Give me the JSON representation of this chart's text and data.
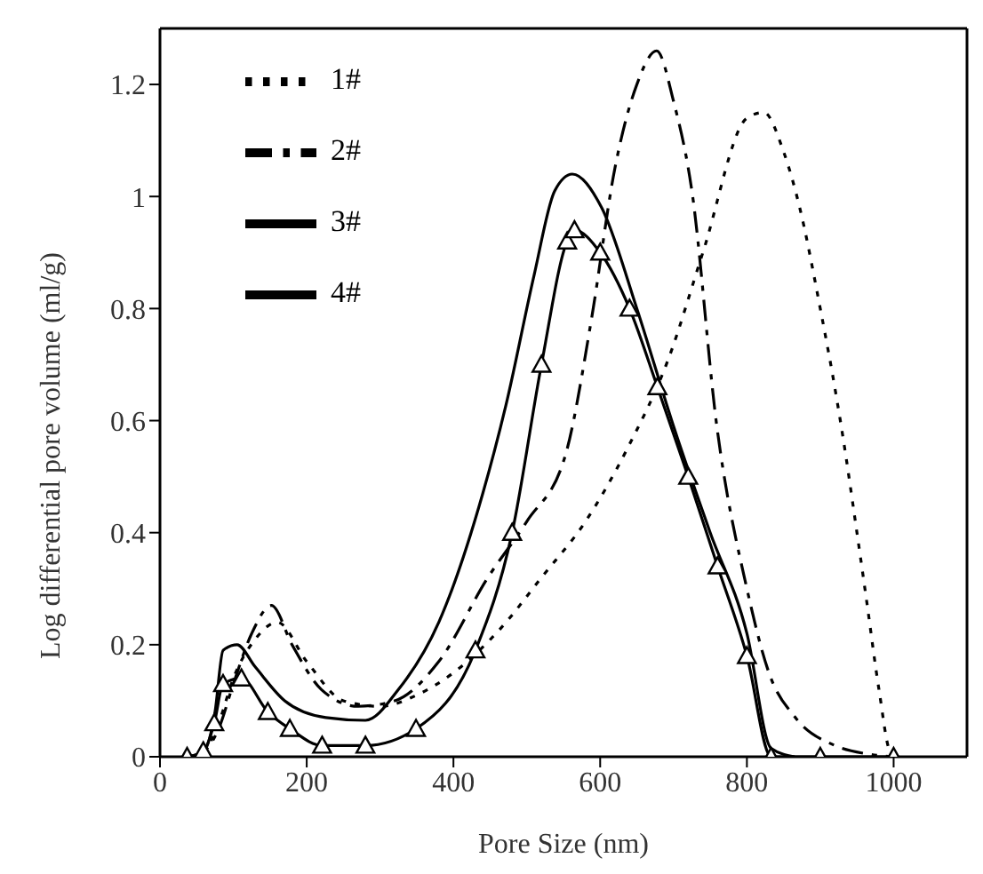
{
  "chart_data": {
    "type": "line",
    "xlabel": "Pore Size (nm)",
    "ylabel": "Log differential pore volume (ml/g)",
    "xlim": [
      0,
      1100
    ],
    "xticks": [
      0,
      200,
      400,
      600,
      800,
      1000
    ],
    "ylim": [
      0,
      1.3
    ],
    "yticks": [
      0,
      0.2,
      0.4,
      0.6,
      0.8,
      1,
      1.2
    ],
    "grid": false,
    "legend": "top left",
    "marker": "none",
    "series": [
      {
        "name": "1#",
        "color": "#000000",
        "line_style": "dotted",
        "x": [
          40,
          60,
          80,
          100,
          130,
          160,
          200,
          250,
          300,
          350,
          400,
          465,
          520,
          580,
          637,
          693,
          740,
          800,
          823,
          850,
          872,
          900,
          921,
          931,
          950,
          963,
          980,
          995,
          1005
        ],
        "values": [
          0,
          0.01,
          0.06,
          0.14,
          0.21,
          0.24,
          0.17,
          0.1,
          0.09,
          0.11,
          0.15,
          0.23,
          0.32,
          0.42,
          0.55,
          0.71,
          0.9,
          1.14,
          1.15,
          1.08,
          0.98,
          0.8,
          0.65,
          0.57,
          0.4,
          0.28,
          0.12,
          0.01,
          0
        ]
      },
      {
        "name": "2#",
        "color": "#000000",
        "line_style": "dashed",
        "x": [
          40,
          60,
          80,
          100,
          125,
          152,
          180,
          220,
          270,
          320,
          380,
          447,
          500,
          553,
          588,
          620,
          650,
          677,
          700,
          725,
          759,
          800,
          830,
          866,
          920,
          964,
          1000
        ],
        "values": [
          0,
          0.01,
          0.05,
          0.13,
          0.22,
          0.27,
          0.2,
          0.12,
          0.09,
          0.1,
          0.17,
          0.32,
          0.42,
          0.54,
          0.78,
          1.05,
          1.2,
          1.26,
          1.17,
          1.01,
          0.59,
          0.3,
          0.15,
          0.07,
          0.02,
          0.005,
          0
        ]
      },
      {
        "name": "3#",
        "color": "#000000",
        "line_style": "solid",
        "x": [
          40,
          60,
          75,
          86,
          105,
          130,
          170,
          226,
          280,
          325,
          380,
          440,
          472,
          510,
          538,
          562,
          602,
          650,
          700,
          750,
          800,
          833,
          865
        ],
        "values": [
          0,
          0.01,
          0.08,
          0.19,
          0.2,
          0.16,
          0.1,
          0.07,
          0.065,
          0.12,
          0.24,
          0.47,
          0.63,
          0.86,
          1.01,
          1.04,
          0.98,
          0.8,
          0.59,
          0.4,
          0.22,
          0.015,
          0
        ]
      },
      {
        "name": "4#",
        "color": "#000000",
        "line_style": "solid",
        "marker": "triangle",
        "x": [
          37,
          59,
          74,
          86,
          111,
          147,
          177,
          221,
          280,
          349,
          430,
          480,
          520,
          555,
          565,
          600,
          640,
          678,
          720,
          760,
          800,
          833,
          900,
          1000
        ],
        "values": [
          0,
          0.01,
          0.06,
          0.13,
          0.14,
          0.08,
          0.05,
          0.02,
          0.02,
          0.05,
          0.19,
          0.4,
          0.7,
          0.92,
          0.94,
          0.9,
          0.8,
          0.66,
          0.5,
          0.34,
          0.18,
          0,
          0,
          0
        ]
      }
    ]
  }
}
